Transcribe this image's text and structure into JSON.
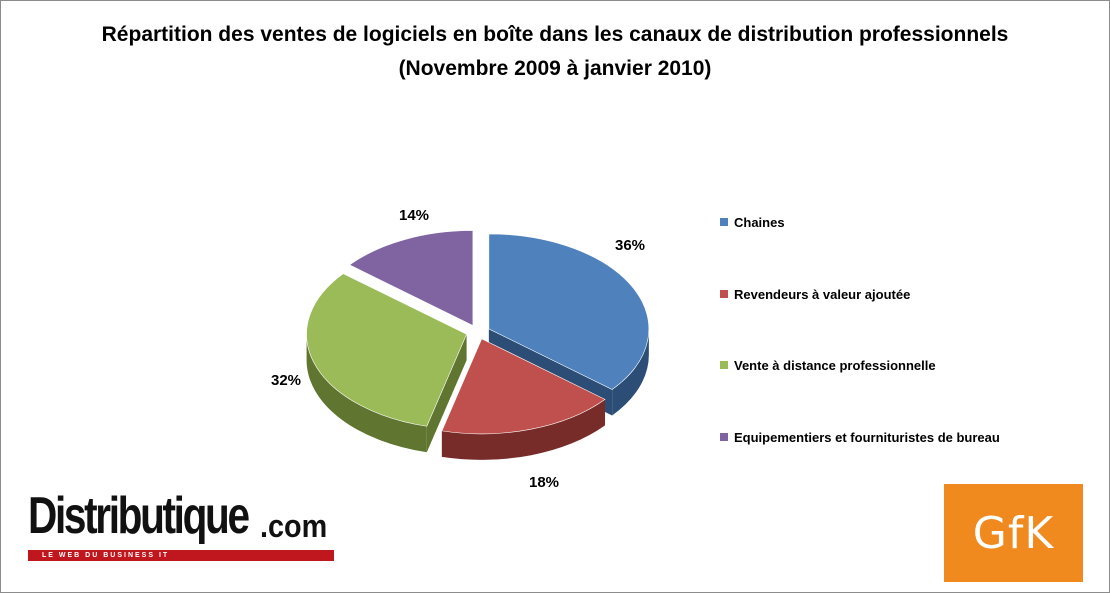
{
  "chart_data": {
    "type": "pie",
    "title": "Répartition des ventes de logiciels en boîte dans les canaux de distribution professionnels",
    "subtitle": "(Novembre 2009 à janvier 2010)",
    "categories": [
      "Chaines",
      "Revendeurs à valeur ajoutée",
      "Vente à distance professionnelle",
      "Equipementiers et fournituristes de bureau"
    ],
    "values": [
      36,
      18,
      32,
      14
    ],
    "labels": [
      "36%",
      "18%",
      "32%",
      "14%"
    ],
    "colors": [
      "#4f81bd",
      "#c0504d",
      "#9bbb59",
      "#8064a2"
    ],
    "side_colors": [
      "#2c4d75",
      "#772c2a",
      "#5f7530",
      "#4d3b62"
    ],
    "legend_position": "right",
    "style": "3d-exploded-pie"
  },
  "logos": {
    "distributique_name": "Distributique",
    "distributique_domain": ".com",
    "distributique_tagline": "LE WEB DU BUSINESS IT",
    "gfk": "GfK"
  }
}
